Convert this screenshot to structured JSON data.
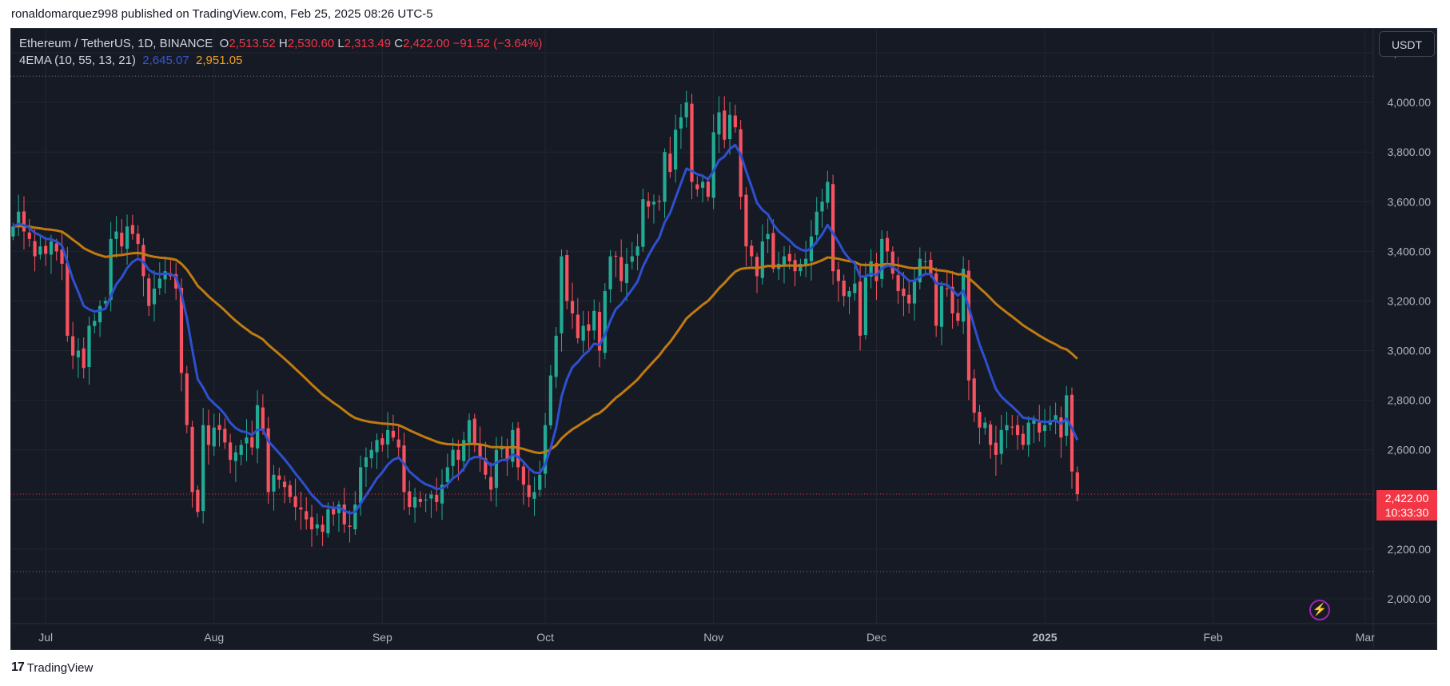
{
  "caption": "ronaldomarquez998 published on TradingView.com, Feb 25, 2025 08:26 UTC-5",
  "legend": {
    "symbol": "Ethereum / TetherUS, 1D, BINANCE",
    "o_label": "O",
    "o_value": "2,513.52",
    "h_label": "H",
    "h_value": "2,530.60",
    "l_label": "L",
    "l_value": "2,313.49",
    "c_label": "C",
    "c_value": "2,422.00",
    "change": "−91.52 (−3.64%)",
    "indicator": "4EMA (10, 55, 13, 21)",
    "ema_fast_value": "2,645.07",
    "ema_slow_value": "2,951.05"
  },
  "currency_button": "USDT",
  "last_price": {
    "price": "2,422.00",
    "countdown": "10:33:30"
  },
  "footer": {
    "brand": "TradingView",
    "logo_icon": "tradingview-logo-icon"
  },
  "colors": {
    "up": "#22ab94",
    "down": "#f7525f",
    "ema_fast": "#2e50cf",
    "ema_slow": "#c07a10",
    "background": "#161a25"
  },
  "chart_data": {
    "type": "candlestick",
    "title": "Ethereum / TetherUS, 1D, BINANCE",
    "ylim": [
      1900,
      4300
    ],
    "y_ticks": [
      "4,200.00",
      "4,000.00",
      "3,800.00",
      "3,600.00",
      "3,400.00",
      "3,200.00",
      "3,000.00",
      "2,800.00",
      "2,600.00",
      "2,400.00",
      "2,200.00",
      "2,000.00"
    ],
    "y_tick_values": [
      4200,
      4000,
      3800,
      3600,
      3400,
      3200,
      3000,
      2800,
      2600,
      2400,
      2200,
      2000
    ],
    "x_ticks": [
      "Jul",
      "Aug",
      "Sep",
      "Oct",
      "Nov",
      "Dec",
      "2025",
      "Feb",
      "Mar"
    ],
    "x_tick_days": [
      6,
      37,
      68,
      98,
      129,
      159,
      190,
      221,
      249
    ],
    "start_date": "2024-06-25",
    "dotted_levels": [
      4106,
      2110
    ],
    "last_close": 2422.0,
    "closes": [
      3500,
      3560,
      3480,
      3450,
      3380,
      3420,
      3390,
      3440,
      3400,
      3350,
      3060,
      2980,
      3000,
      2930,
      3100,
      3120,
      3180,
      3200,
      3450,
      3480,
      3420,
      3500,
      3470,
      3430,
      3300,
      3180,
      3250,
      3290,
      3320,
      3300,
      3250,
      2910,
      2700,
      2430,
      2350,
      2700,
      2620,
      2690,
      2680,
      2630,
      2560,
      2590,
      2620,
      2650,
      2610,
      2780,
      2680,
      2430,
      2500,
      2480,
      2450,
      2410,
      2370,
      2360,
      2320,
      2280,
      2300,
      2270,
      2360,
      2340,
      2380,
      2300,
      2290,
      2380,
      2530,
      2570,
      2600,
      2640,
      2620,
      2680,
      2650,
      2610,
      2430,
      2370,
      2410,
      2390,
      2400,
      2420,
      2390,
      2460,
      2530,
      2600,
      2560,
      2640,
      2720,
      2620,
      2570,
      2500,
      2440,
      2600,
      2610,
      2560,
      2680,
      2530,
      2460,
      2410,
      2430,
      2500,
      2700,
      2900,
      3060,
      3380,
      3200,
      3150,
      3050,
      3100,
      3080,
      3160,
      3000,
      3240,
      3380,
      3380,
      3280,
      3350,
      3380,
      3420,
      3610,
      3580,
      3600,
      3600,
      3800,
      3720,
      3890,
      3940,
      4000,
      3680,
      3650,
      3680,
      3620,
      3880,
      3960,
      3850,
      3950,
      3900,
      3620,
      3420,
      3380,
      3300,
      3440,
      3470,
      3330,
      3350,
      3380,
      3360,
      3320,
      3350,
      3370,
      3460,
      3560,
      3600,
      3680,
      3320,
      3280,
      3220,
      3240,
      3270,
      3060,
      3300,
      3360,
      3280,
      3450,
      3400,
      3310,
      3240,
      3220,
      3190,
      3280,
      3370,
      3360,
      3310,
      3100,
      3260,
      3250,
      3150,
      3120,
      3330,
      2880,
      2750,
      2690,
      2710,
      2620,
      2580,
      2680,
      2700,
      2690,
      2660,
      2620,
      2710,
      2720,
      2670,
      2700,
      2720,
      2740,
      2650,
      2820,
      2513,
      2422
    ]
  }
}
